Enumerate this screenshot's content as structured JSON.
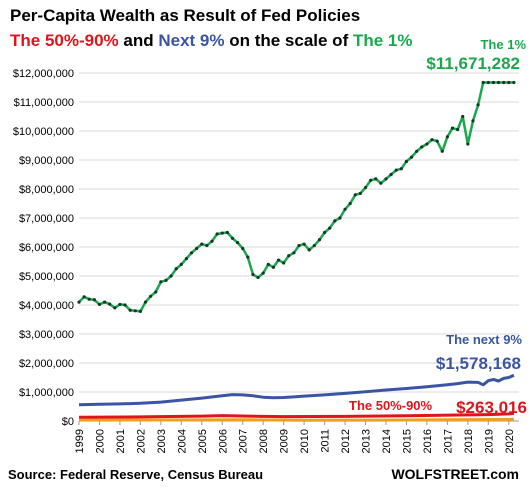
{
  "header": {
    "title": "Per-Capita Wealth as Result of Fed Policies",
    "subtitle_part1": "The 50%-90%",
    "subtitle_part2": " and ",
    "subtitle_part3": "Next 9%",
    "subtitle_part4": " on the scale of ",
    "subtitle_part5": "The 1%"
  },
  "footer": {
    "source": "Source: Federal Reserve, Census Bureau",
    "brand": "WOLFSTREET.com"
  },
  "colors": {
    "top1": "#1aa84e",
    "next9": "#3b55a4",
    "mid40": "#e0141c",
    "bottom50": "#f0a020",
    "grid": "#d8d8d8"
  },
  "chart_data": {
    "type": "line",
    "title": "Per-Capita Wealth as Result of Fed Policies",
    "ylim": [
      0,
      12000000
    ],
    "y_ticks": [
      0,
      1000000,
      2000000,
      3000000,
      4000000,
      5000000,
      6000000,
      7000000,
      8000000,
      9000000,
      10000000,
      11000000,
      12000000
    ],
    "y_tick_labels": [
      "$0",
      "$1,000,000",
      "$2,000,000",
      "$3,000,000",
      "$4,000,000",
      "$5,000,000",
      "$6,000,000",
      "$7,000,000",
      "$8,000,000",
      "$9,000,000",
      "$10,000,000",
      "$11,000,000",
      "$12,000,000"
    ],
    "x_ticks": [
      "1999",
      "2000",
      "2001",
      "2002",
      "2003",
      "2004",
      "2005",
      "2006",
      "2007",
      "2008",
      "2009",
      "2010",
      "2011",
      "2012",
      "2013",
      "2014",
      "2015",
      "2016",
      "2017",
      "2018",
      "2019",
      "2020"
    ],
    "xlim": [
      1999,
      2020.5
    ],
    "grid": true,
    "series": [
      {
        "name": "The 1%",
        "end_label": "$11,671,282",
        "x": [
          1999.0,
          1999.25,
          1999.5,
          1999.75,
          2000.0,
          2000.25,
          2000.5,
          2000.75,
          2001.0,
          2001.25,
          2001.5,
          2001.75,
          2002.0,
          2002.25,
          2002.5,
          2002.75,
          2003.0,
          2003.25,
          2003.5,
          2003.75,
          2004.0,
          2004.25,
          2004.5,
          2004.75,
          2005.0,
          2005.25,
          2005.5,
          2005.75,
          2006.0,
          2006.25,
          2006.5,
          2006.75,
          2007.0,
          2007.25,
          2007.5,
          2007.75,
          2008.0,
          2008.25,
          2008.5,
          2008.75,
          2009.0,
          2009.25,
          2009.5,
          2009.75,
          2010.0,
          2010.25,
          2010.5,
          2010.75,
          2011.0,
          2011.25,
          2011.5,
          2011.75,
          2012.0,
          2012.25,
          2012.5,
          2012.75,
          2013.0,
          2013.25,
          2013.5,
          2013.75,
          2014.0,
          2014.25,
          2014.5,
          2014.75,
          2015.0,
          2015.25,
          2015.5,
          2015.75,
          2016.0,
          2016.25,
          2016.5,
          2016.75,
          2017.0,
          2017.25,
          2017.5,
          2017.75,
          2018.0,
          2018.25,
          2018.5,
          2018.75,
          2019.0,
          2019.25,
          2019.5,
          2019.75,
          2020.0,
          2020.25
        ],
        "values": [
          4100000,
          4280000,
          4200000,
          4180000,
          4020000,
          4100000,
          4030000,
          3900000,
          4020000,
          4000000,
          3820000,
          3800000,
          3780000,
          4100000,
          4300000,
          4450000,
          4800000,
          4850000,
          5000000,
          5250000,
          5400000,
          5600000,
          5800000,
          5950000,
          6100000,
          6050000,
          6200000,
          6450000,
          6480000,
          6500000,
          6300000,
          6150000,
          5950000,
          5650000,
          5050000,
          4950000,
          5100000,
          5400000,
          5300000,
          5550000,
          5450000,
          5700000,
          5800000,
          6050000,
          6100000,
          5900000,
          6050000,
          6250000,
          6500000,
          6650000,
          6900000,
          7000000,
          7300000,
          7500000,
          7800000,
          7850000,
          8050000,
          8300000,
          8350000,
          8200000,
          8350000,
          8500000,
          8650000,
          8700000,
          8950000,
          9100000,
          9300000,
          9450000,
          9550000,
          9700000,
          9650000,
          9300000,
          9800000,
          10100000,
          10050000,
          10500000,
          9550000,
          10350000,
          10900000,
          11671282,
          11671282,
          11671282,
          11671282,
          11671282,
          11671282,
          11671282
        ]
      },
      {
        "name": "The next 9%",
        "end_label": "$1,578,168",
        "x": [
          1999.0,
          2000.0,
          2001.0,
          2002.0,
          2003.0,
          2004.0,
          2005.0,
          2006.0,
          2006.5,
          2007.0,
          2007.5,
          2008.0,
          2008.5,
          2009.0,
          2009.5,
          2010.0,
          2011.0,
          2012.0,
          2013.0,
          2014.0,
          2015.0,
          2016.0,
          2017.0,
          2017.5,
          2018.0,
          2018.5,
          2018.75,
          2019.0,
          2019.25,
          2019.5,
          2019.75,
          2020.0,
          2020.25
        ],
        "values": [
          560000,
          580000,
          590000,
          610000,
          650000,
          720000,
          790000,
          870000,
          910000,
          900000,
          870000,
          820000,
          800000,
          810000,
          830000,
          860000,
          900000,
          950000,
          1010000,
          1070000,
          1120000,
          1180000,
          1250000,
          1290000,
          1340000,
          1330000,
          1250000,
          1390000,
          1430000,
          1380000,
          1470000,
          1500000,
          1578168
        ]
      },
      {
        "name": "The 50%-90%",
        "end_label": "$263,016",
        "x": [
          1999.0,
          2002.0,
          2005.0,
          2006.0,
          2008.0,
          2009.0,
          2012.0,
          2015.0,
          2018.0,
          2019.0,
          2020.0,
          2020.25
        ],
        "values": [
          130000,
          140000,
          170000,
          185000,
          160000,
          150000,
          160000,
          180000,
          210000,
          220000,
          245000,
          263016
        ]
      },
      {
        "x": [
          1999.0,
          2003.0,
          2007.0,
          2010.0,
          2014.0,
          2018.0,
          2020.25
        ],
        "values": [
          30000,
          35000,
          40000,
          25000,
          30000,
          50000,
          60000
        ]
      }
    ]
  }
}
